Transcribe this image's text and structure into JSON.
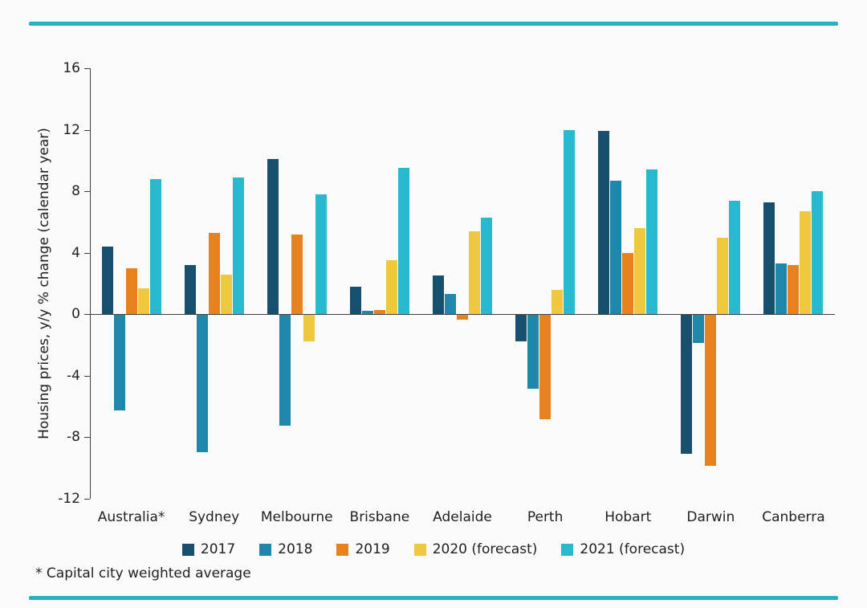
{
  "page": {
    "background": "#fbfbfb",
    "accent_color": "#2bb1c6"
  },
  "chart_data": {
    "type": "bar",
    "title": "",
    "ylabel": "Housing prices, y/y % change (calendar year)",
    "xlabel": "",
    "ylim": [
      -12,
      16
    ],
    "yticks": [
      16,
      12,
      8,
      4,
      0,
      -4,
      -8,
      -12
    ],
    "grid": false,
    "legend_position": "bottom",
    "axis_color": "#3f3f3f",
    "text_color": "#1f1f1f",
    "categories": [
      "Australia*",
      "Sydney",
      "Melbourne",
      "Brisbane",
      "Adelaide",
      "Perth",
      "Hobart",
      "Darwin",
      "Canberra"
    ],
    "series": [
      {
        "name": "2017",
        "color": "#16506e",
        "values": [
          4.4,
          3.2,
          10.1,
          1.8,
          2.5,
          -1.7,
          11.9,
          -9.0,
          7.3
        ]
      },
      {
        "name": "2018",
        "color": "#1e87ab",
        "values": [
          -6.2,
          -8.9,
          -7.2,
          0.2,
          1.3,
          -4.8,
          8.7,
          -1.8,
          3.3
        ]
      },
      {
        "name": "2019",
        "color": "#e8821e",
        "values": [
          3.0,
          5.3,
          5.2,
          0.3,
          -0.3,
          -6.8,
          4.0,
          -9.8,
          3.2
        ]
      },
      {
        "name": "2020 (forecast)",
        "color": "#f0c83e",
        "values": [
          1.7,
          2.6,
          -1.7,
          3.5,
          5.4,
          1.6,
          5.6,
          5.0,
          6.7
        ]
      },
      {
        "name": "2021 (forecast)",
        "color": "#29b9cf",
        "values": [
          8.8,
          8.9,
          7.8,
          9.5,
          6.3,
          12.0,
          9.4,
          7.4,
          8.0
        ]
      }
    ],
    "footnote": "* Capital city weighted average"
  }
}
